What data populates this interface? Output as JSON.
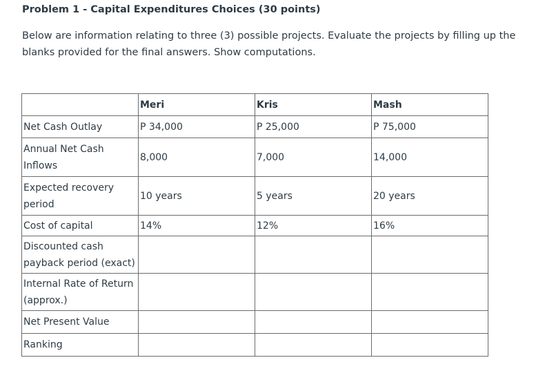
{
  "problem": {
    "title": "Problem 1 - Capital Expenditures Choices (30 points)",
    "intro": "Below are information relating to three (3) possible projects. Evaluate the projects by filling up the blanks provided for the final answers. Show computations."
  },
  "table": {
    "header": [
      "",
      "Meri",
      "Kris",
      "Mash"
    ],
    "rows": [
      {
        "label": "Net Cash Outlay",
        "meri": "P 34,000",
        "kris": "P 25,000",
        "mash": "P 75,000"
      },
      {
        "label": "Annual Net Cash Inflows",
        "meri": "8,000",
        "kris": "7,000",
        "mash": "14,000"
      },
      {
        "label": "Expected recovery period",
        "meri": "10 years",
        "kris": "5 years",
        "mash": "20 years"
      },
      {
        "label": "Cost of capital",
        "meri": "14%",
        "kris": "12%",
        "mash": "16%"
      },
      {
        "label": "Discounted cash payback period (exact)",
        "meri": "",
        "kris": "",
        "mash": ""
      },
      {
        "label": "Internal Rate of Return (approx.)",
        "meri": "",
        "kris": "",
        "mash": ""
      },
      {
        "label": "Net Present Value",
        "meri": "",
        "kris": "",
        "mash": ""
      },
      {
        "label": "Ranking",
        "meri": "",
        "kris": "",
        "mash": ""
      }
    ]
  }
}
